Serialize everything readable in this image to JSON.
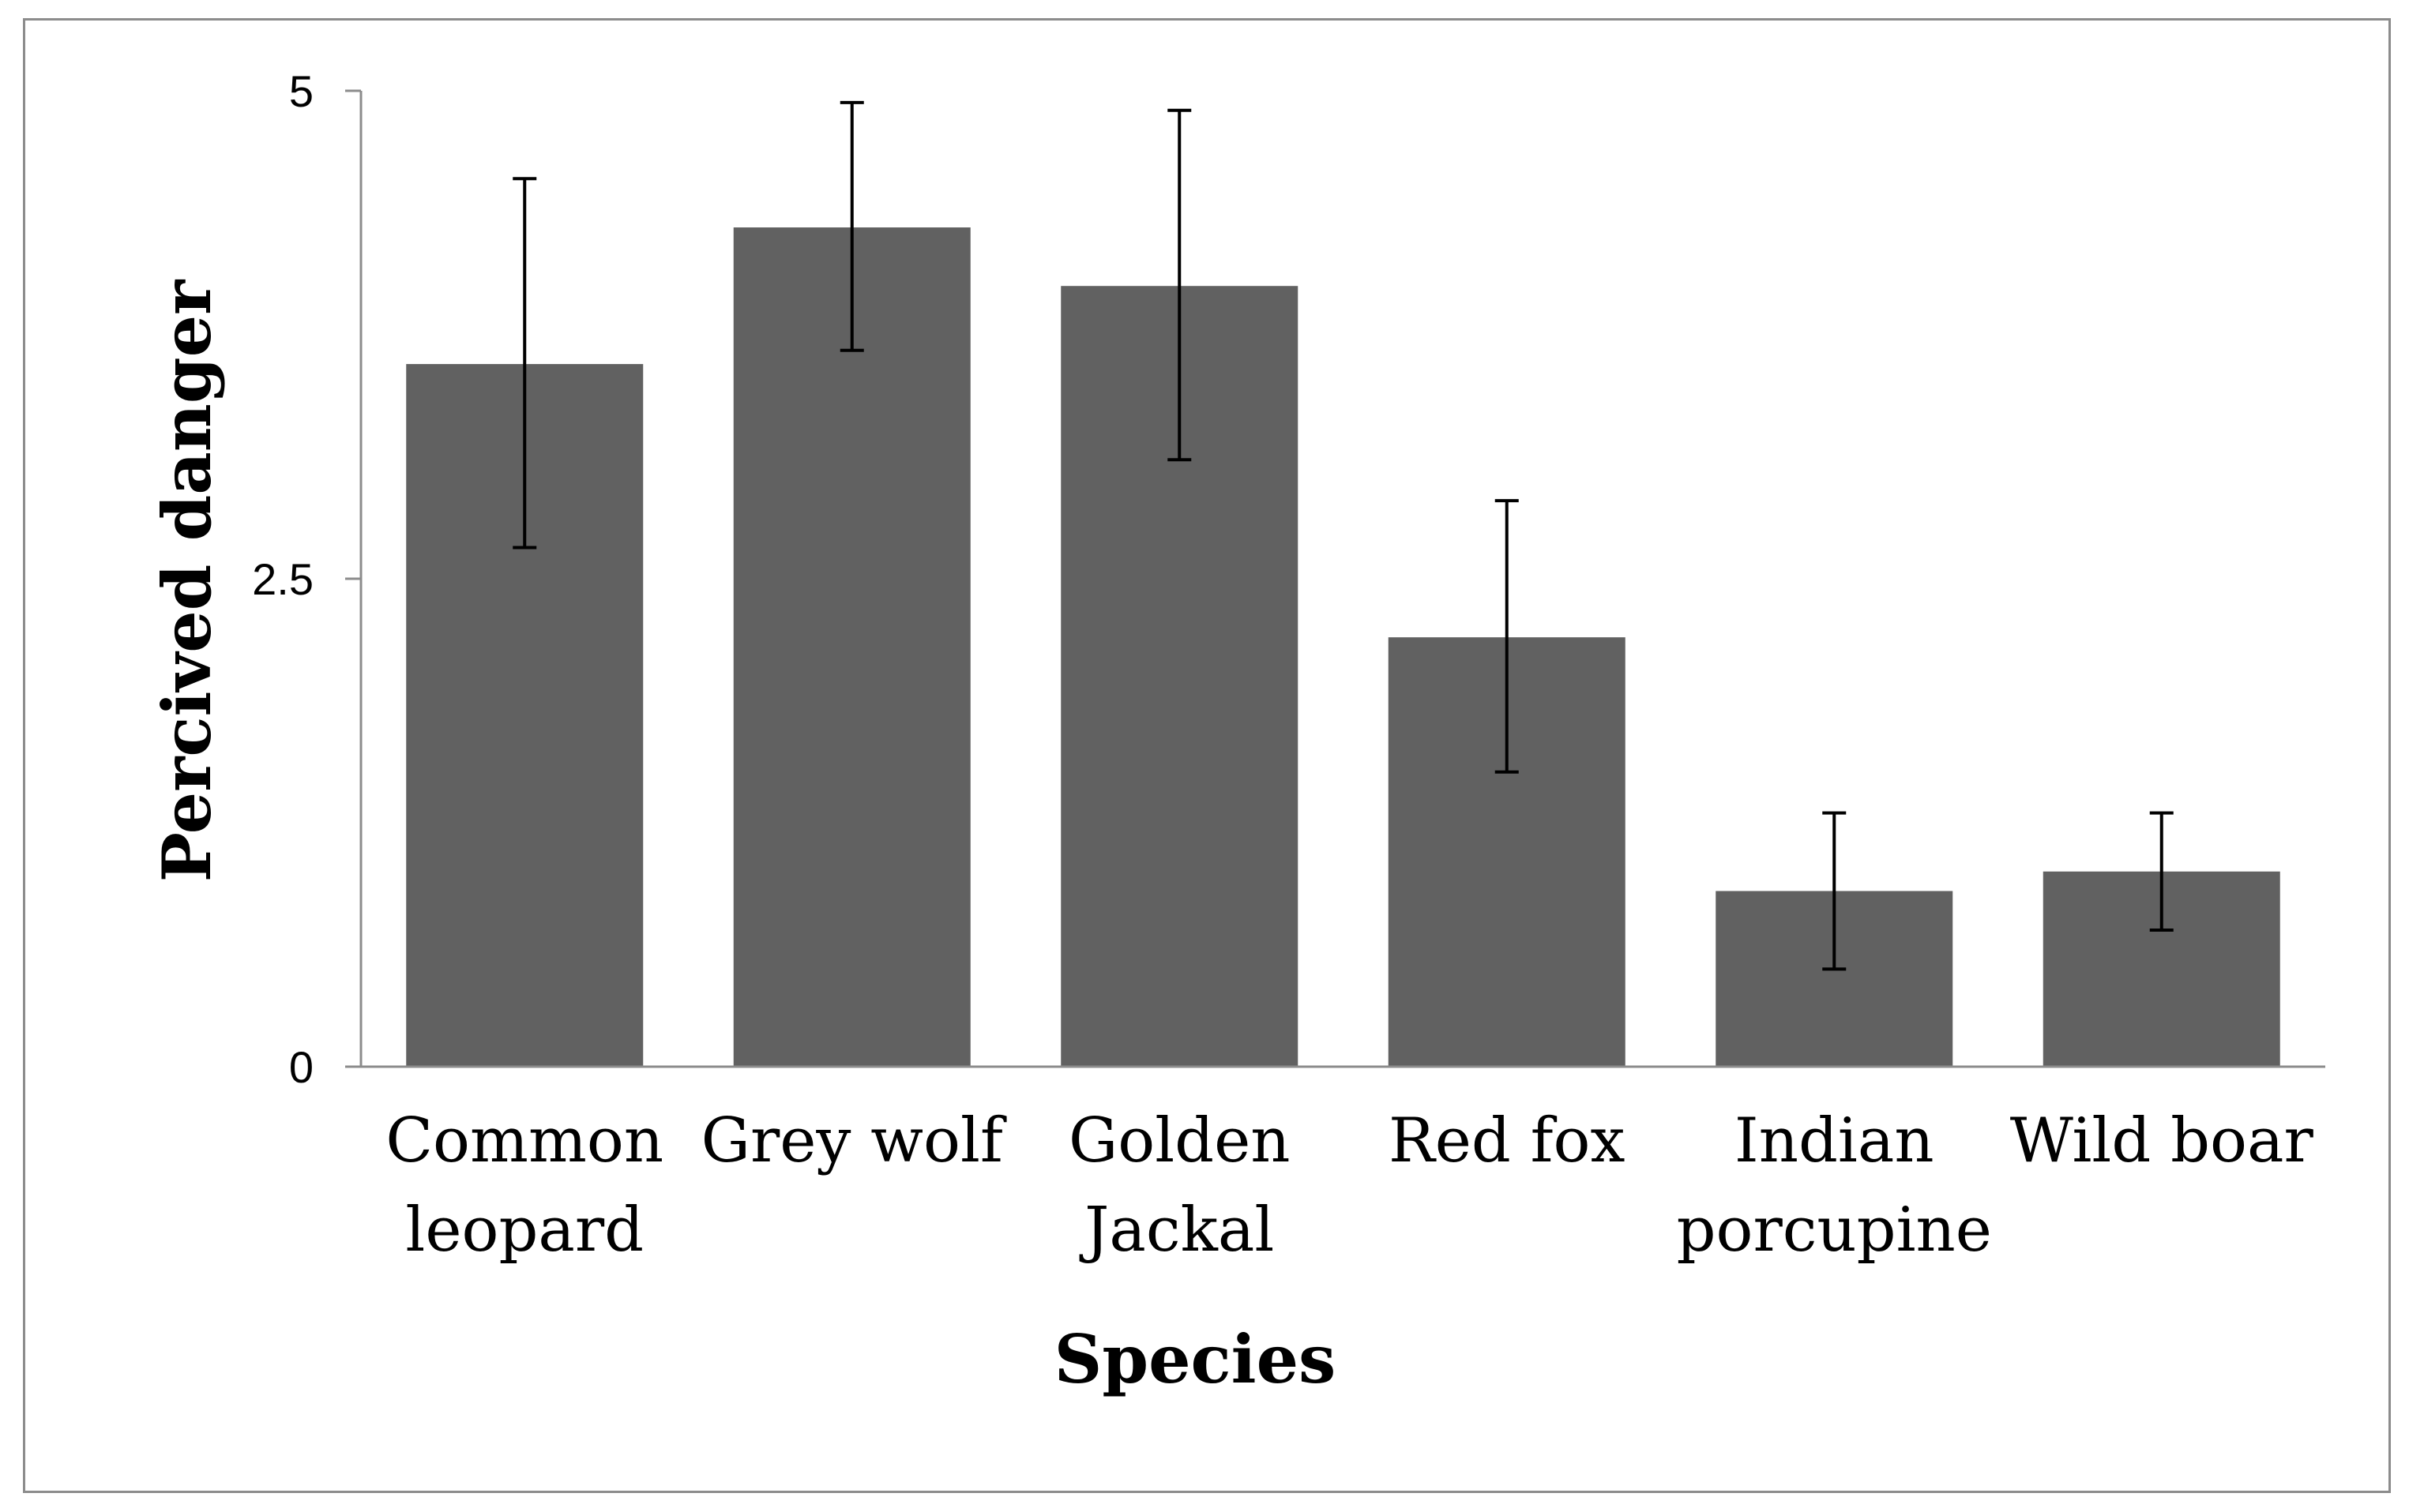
{
  "chart_data": {
    "type": "bar",
    "title": "",
    "xlabel": "Species",
    "ylabel": "Percived danger",
    "ylim": [
      0,
      5
    ],
    "yticks": [
      {
        "value": 0,
        "label": "0"
      },
      {
        "value": 2.5,
        "label": "2.5"
      },
      {
        "value": 5,
        "label": "5"
      }
    ],
    "grid": false,
    "categories": [
      [
        "Common",
        "leopard"
      ],
      [
        "Grey wolf"
      ],
      [
        "Golden",
        "Jackal"
      ],
      [
        "Red fox"
      ],
      [
        "Indian",
        "porcupine"
      ],
      [
        "Wild boar"
      ]
    ],
    "values": [
      3.6,
      4.3,
      4.0,
      2.2,
      0.9,
      1.0
    ],
    "error_low": [
      2.66,
      3.67,
      3.11,
      1.51,
      0.5,
      0.7
    ],
    "error_high": [
      4.55,
      4.94,
      4.9,
      2.9,
      1.3,
      1.3
    ],
    "colors": {
      "bar": "#616161",
      "axis": "#8c8c8c",
      "error": "#000000"
    }
  }
}
